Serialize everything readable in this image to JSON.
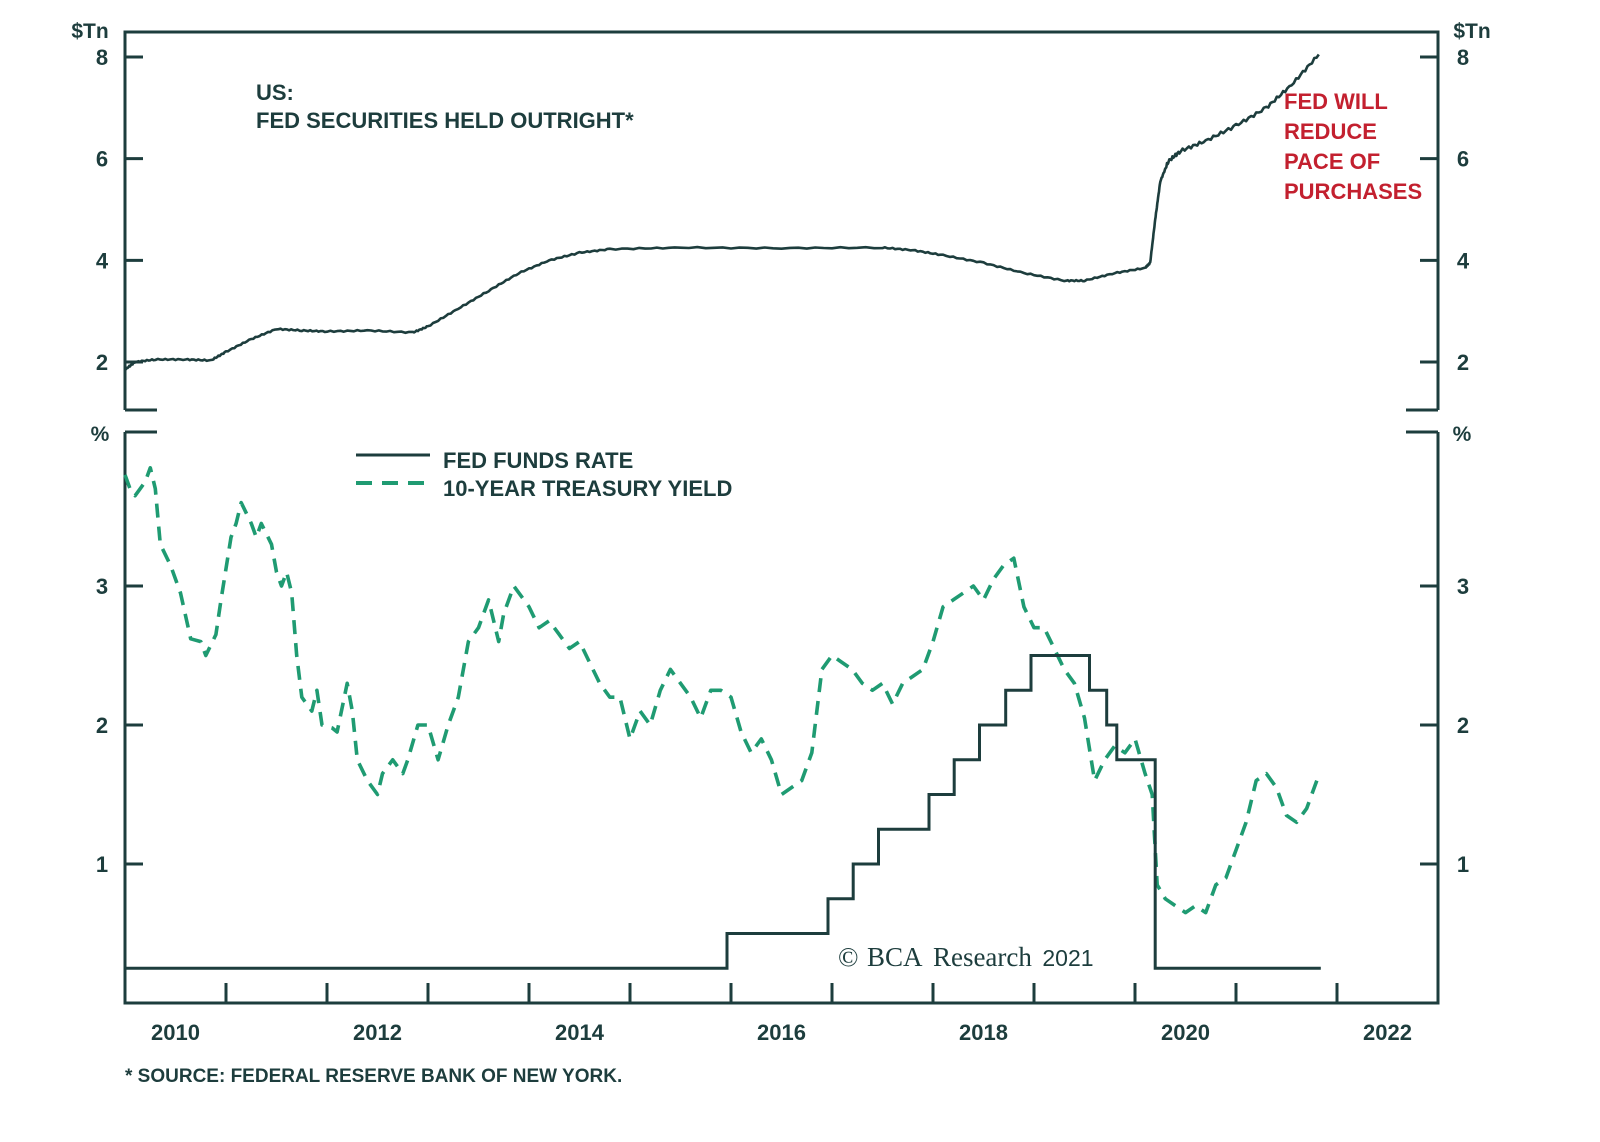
{
  "chart_data": [
    {
      "panel": "top",
      "type": "line",
      "title": "US:",
      "subtitle": "FED SECURITIES HELD OUTRIGHT*",
      "ylabel_left": "$Tn",
      "ylabel_right": "$Tn",
      "yticks": [
        "2",
        "4",
        "6",
        "8"
      ],
      "ylim": [
        1.05,
        8.5
      ],
      "annotation": [
        "FED WILL",
        "REDUCE",
        "PACE OF",
        "PURCHASES"
      ],
      "annotation_color": "#c3202f",
      "series": [
        {
          "name": "Fed securities held outright",
          "color": "#1d3d3d",
          "x": [
            2010.0,
            2010.1,
            2010.3,
            2010.6,
            2010.85,
            2011.0,
            2011.25,
            2011.5,
            2011.75,
            2012.0,
            2012.4,
            2012.85,
            2013.0,
            2013.3,
            2013.6,
            2013.9,
            2014.2,
            2014.5,
            2014.8,
            2015.5,
            2016.5,
            2017.5,
            2017.8,
            2018.1,
            2018.5,
            2018.9,
            2019.3,
            2019.5,
            2019.8,
            2020.1,
            2020.15,
            2020.2,
            2020.25,
            2020.33,
            2020.45,
            2020.7,
            2021.0,
            2021.3,
            2021.55,
            2021.82
          ],
          "values": [
            1.85,
            2.0,
            2.05,
            2.05,
            2.03,
            2.2,
            2.45,
            2.65,
            2.62,
            2.6,
            2.62,
            2.58,
            2.7,
            3.05,
            3.4,
            3.75,
            4.0,
            4.15,
            4.22,
            4.25,
            4.24,
            4.25,
            4.2,
            4.1,
            3.95,
            3.75,
            3.6,
            3.6,
            3.75,
            3.85,
            3.95,
            4.8,
            5.55,
            5.95,
            6.15,
            6.35,
            6.65,
            7.0,
            7.45,
            8.05
          ]
        }
      ]
    },
    {
      "panel": "bottom",
      "type": "line",
      "ylabel_left": "%",
      "ylabel_right": "%",
      "yticks": [
        "1",
        "2",
        "3"
      ],
      "ylim": [
        0.0,
        4.1
      ],
      "xlabel": "",
      "xticks": [
        "2010",
        "2012",
        "2014",
        "2016",
        "2018",
        "2020",
        "2022"
      ],
      "xlim": [
        2010.0,
        2023.0
      ],
      "legend": [
        {
          "label": "FED FUNDS RATE",
          "style": "solid",
          "color": "#1d3d3d"
        },
        {
          "label": "10-YEAR TREASURY YIELD",
          "style": "dashed",
          "color": "#1f9b72"
        }
      ],
      "legend_position": "top-left",
      "series": [
        {
          "name": "FED FUNDS RATE",
          "style": "step",
          "color": "#1d3d3d",
          "x": [
            2010.0,
            2015.96,
            2016.96,
            2017.21,
            2017.46,
            2017.96,
            2018.21,
            2018.46,
            2018.72,
            2018.97,
            2019.55,
            2019.72,
            2019.82,
            2020.2,
            2021.84
          ],
          "values": [
            0.25,
            0.5,
            0.75,
            1.0,
            1.25,
            1.5,
            1.75,
            2.0,
            2.25,
            2.5,
            2.25,
            2.0,
            1.75,
            0.25,
            0.25
          ]
        },
        {
          "name": "10-YEAR TREASURY YIELD",
          "style": "dashed",
          "color": "#1f9b72",
          "x": [
            2010.0,
            2010.05,
            2010.1,
            2010.15,
            2010.2,
            2010.25,
            2010.3,
            2010.35,
            2010.45,
            2010.55,
            2010.65,
            2010.75,
            2010.8,
            2010.9,
            2010.95,
            2011.05,
            2011.1,
            2011.15,
            2011.25,
            2011.3,
            2011.35,
            2011.45,
            2011.5,
            2011.55,
            2011.6,
            2011.65,
            2011.7,
            2011.75,
            2011.85,
            2011.9,
            2011.95,
            2012.05,
            2012.1,
            2012.2,
            2012.25,
            2012.3,
            2012.4,
            2012.5,
            2012.55,
            2012.65,
            2012.75,
            2012.8,
            2012.9,
            2013.0,
            2013.1,
            2013.2,
            2013.3,
            2013.4,
            2013.5,
            2013.6,
            2013.7,
            2013.75,
            2013.85,
            2014.0,
            2014.1,
            2014.2,
            2014.3,
            2014.4,
            2014.5,
            2014.6,
            2014.7,
            2014.8,
            2014.9,
            2015.0,
            2015.1,
            2015.2,
            2015.3,
            2015.4,
            2015.5,
            2015.6,
            2015.7,
            2015.8,
            2015.9,
            2016.0,
            2016.1,
            2016.2,
            2016.3,
            2016.4,
            2016.5,
            2016.6,
            2016.7,
            2016.8,
            2016.9,
            2017.0,
            2017.1,
            2017.2,
            2017.3,
            2017.4,
            2017.5,
            2017.6,
            2017.7,
            2017.8,
            2017.9,
            2018.0,
            2018.1,
            2018.2,
            2018.3,
            2018.4,
            2018.5,
            2018.6,
            2018.7,
            2018.8,
            2018.9,
            2019.0,
            2019.1,
            2019.2,
            2019.3,
            2019.4,
            2019.5,
            2019.6,
            2019.7,
            2019.8,
            2019.9,
            2020.0,
            2020.1,
            2020.17,
            2020.22,
            2020.3,
            2020.4,
            2020.5,
            2020.6,
            2020.7,
            2020.8,
            2020.9,
            2021.0,
            2021.1,
            2021.2,
            2021.3,
            2021.4,
            2021.5,
            2021.6,
            2021.7,
            2021.8
          ],
          "values": [
            3.8,
            3.7,
            3.65,
            3.7,
            3.75,
            3.85,
            3.7,
            3.3,
            3.15,
            2.95,
            2.62,
            2.6,
            2.5,
            2.65,
            2.9,
            3.35,
            3.45,
            3.6,
            3.45,
            3.35,
            3.45,
            3.3,
            3.1,
            3.0,
            3.1,
            2.95,
            2.5,
            2.2,
            2.1,
            2.25,
            2.0,
            1.98,
            1.95,
            2.3,
            2.1,
            1.75,
            1.6,
            1.5,
            1.65,
            1.75,
            1.65,
            1.75,
            2.0,
            2.0,
            1.75,
            2.0,
            2.2,
            2.6,
            2.7,
            2.9,
            2.6,
            2.8,
            3.0,
            2.85,
            2.7,
            2.75,
            2.65,
            2.55,
            2.6,
            2.45,
            2.3,
            2.2,
            2.2,
            1.9,
            2.1,
            2.0,
            2.25,
            2.4,
            2.3,
            2.2,
            2.05,
            2.25,
            2.25,
            2.2,
            1.95,
            1.8,
            1.9,
            1.75,
            1.5,
            1.55,
            1.6,
            1.8,
            2.4,
            2.5,
            2.45,
            2.4,
            2.3,
            2.25,
            2.3,
            2.15,
            2.3,
            2.35,
            2.4,
            2.6,
            2.85,
            2.9,
            2.95,
            3.0,
            2.9,
            3.05,
            3.15,
            3.2,
            2.85,
            2.7,
            2.7,
            2.55,
            2.4,
            2.3,
            2.05,
            1.6,
            1.75,
            1.85,
            1.8,
            1.9,
            1.65,
            1.5,
            0.85,
            0.75,
            0.7,
            0.65,
            0.7,
            0.65,
            0.85,
            0.9,
            1.1,
            1.3,
            1.6,
            1.65,
            1.55,
            1.35,
            1.3,
            1.4,
            1.6
          ]
        }
      ]
    }
  ],
  "source_note": "* SOURCE: FEDERAL RESERVE BANK OF NEW YORK.",
  "copyright": {
    "symbol": "©",
    "brand": "BCA",
    "word": "Research",
    "year": "2021"
  }
}
